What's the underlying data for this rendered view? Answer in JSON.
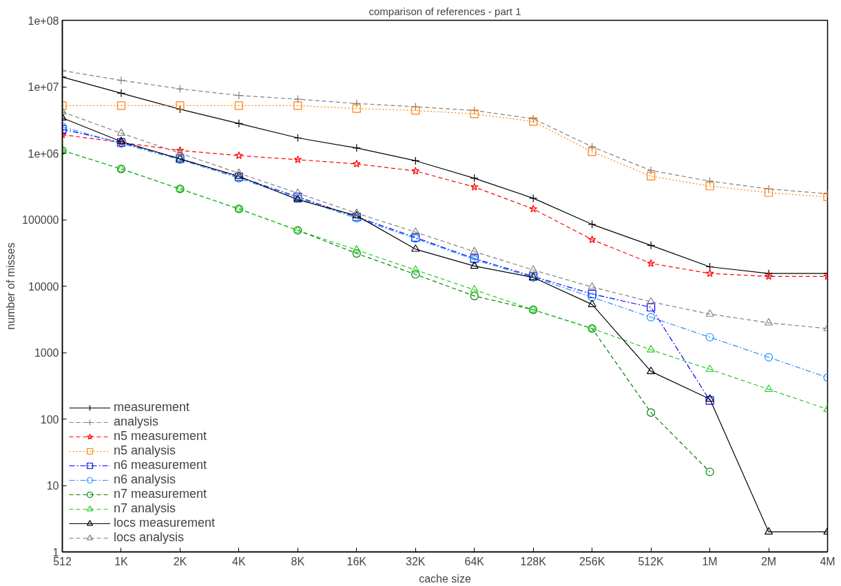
{
  "chart_data": {
    "type": "line",
    "title": "comparison of references - part 1",
    "xlabel": "cache size",
    "ylabel": "number of misses",
    "categories": [
      "512",
      "1K",
      "2K",
      "4K",
      "8K",
      "16K",
      "32K",
      "64K",
      "128K",
      "256K",
      "512K",
      "1M",
      "2M",
      "4M"
    ],
    "log": "y",
    "ylim": [
      1,
      100000000
    ],
    "yticks": [
      1,
      10,
      100,
      1000,
      10000,
      100000,
      {
        "value": 1000000,
        "label": "1e+06"
      },
      {
        "value": 10000000,
        "label": "1e+07"
      },
      {
        "value": 100000000,
        "label": "1e+08"
      }
    ],
    "grid": false,
    "legend": "bottom left",
    "series": [
      {
        "name": "measurement",
        "color": "#000000",
        "marker": "cross",
        "line_style": "solid",
        "values": [
          14000000,
          8000000,
          4600000,
          2800000,
          1700000,
          1200000,
          770000,
          420000,
          210000,
          85000,
          41000,
          19500,
          15500,
          15500
        ]
      },
      {
        "name": "analysis",
        "color": "#808080",
        "marker": "cross",
        "line_style": "dashed",
        "values": [
          17500000,
          12500000,
          9300000,
          7400000,
          6500000,
          5600000,
          5000000,
          4400000,
          3300000,
          1250000,
          550000,
          380000,
          290000,
          245000
        ]
      },
      {
        "name": "n5 measurement",
        "color": "#ff0000",
        "marker": "star",
        "line_style": "dashed",
        "values": [
          1900000,
          1450000,
          1100000,
          920000,
          800000,
          690000,
          540000,
          310000,
          145000,
          50000,
          22000,
          15500,
          14000,
          14000
        ]
      },
      {
        "name": "n5 analysis",
        "color": "#ff8000",
        "marker": "square",
        "line_style": "dotted",
        "values": [
          5200000,
          5200000,
          5200000,
          5200000,
          5200000,
          4700000,
          4400000,
          3900000,
          3000000,
          1050000,
          450000,
          320000,
          255000,
          220000
        ]
      },
      {
        "name": "n6 measurement",
        "color": "#0000ff",
        "marker": "square",
        "line_style": "dashdot",
        "values": [
          2300000,
          1450000,
          830000,
          440000,
          220000,
          110000,
          54000,
          26000,
          14000,
          7600,
          4800,
          190,
          null,
          null
        ]
      },
      {
        "name": "n6 analysis",
        "color": "#1e90ff",
        "marker": "circle",
        "line_style": "dashdot",
        "values": [
          2500000,
          1400000,
          800000,
          420000,
          210000,
          105000,
          52000,
          25000,
          13500,
          6800,
          3400,
          1700,
          850,
          420
        ]
      },
      {
        "name": "n7 measurement",
        "color": "#008000",
        "marker": "circle",
        "line_style": "dashed",
        "values": [
          1100000,
          580000,
          290000,
          145000,
          69000,
          31000,
          15000,
          7100,
          4400,
          2300,
          125,
          16,
          null,
          null
        ]
      },
      {
        "name": "n7 analysis",
        "color": "#22cc22",
        "marker": "triangle",
        "line_style": "dashed",
        "values": [
          1100000,
          580000,
          290000,
          145000,
          69000,
          35000,
          17500,
          8800,
          4400,
          2300,
          1100,
          560,
          280,
          140
        ]
      },
      {
        "name": "locs measurement",
        "color": "#000000",
        "marker": "triangle",
        "line_style": "solid",
        "values": [
          3400000,
          1500000,
          820000,
          450000,
          200000,
          115000,
          36000,
          20000,
          13500,
          5300,
          520,
          200,
          2,
          2
        ]
      },
      {
        "name": "locs analysis",
        "color": "#808080",
        "marker": "triangle",
        "line_style": "dashed",
        "values": [
          4200000,
          2000000,
          1000000,
          500000,
          250000,
          125000,
          65000,
          33000,
          17500,
          9700,
          5800,
          3800,
          2800,
          2300
        ]
      }
    ]
  }
}
